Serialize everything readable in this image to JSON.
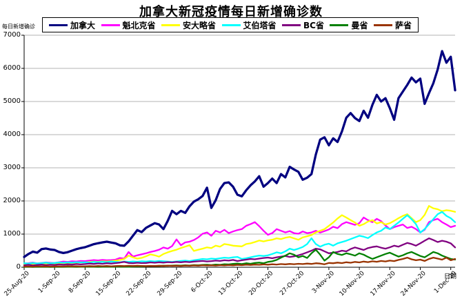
{
  "chart_data": {
    "type": "line",
    "title": "加拿大新冠疫情每日新增确诊数",
    "xlabel": "日期",
    "ylabel": "每日新增确诊",
    "ylim": [
      0,
      7000
    ],
    "y_ticks": [
      0,
      1000,
      2000,
      3000,
      4000,
      5000,
      6000,
      7000
    ],
    "x_tick_labels": [
      "25-Aug-20",
      "1-Sep-20",
      "8-Sep-20",
      "15-Sep-20",
      "22-Sep-20",
      "29-Sep-20",
      "6-Oct-20",
      "13-Oct-20",
      "20-Oct-20",
      "27-Oct-20",
      "3-Nov-20",
      "10-Nov-20",
      "17-Nov-20",
      "24-Nov-20",
      "1-Dec-20"
    ],
    "x_tick_interval_days": 7,
    "x_start_date": "25-Aug-20",
    "x_end_date": "2-Dec-20",
    "grid": true,
    "legend_position": "top",
    "gridline_color": "#b3b3b3",
    "series": [
      {
        "name": "加拿大",
        "color": "#000080",
        "values": [
          310,
          400,
          470,
          440,
          545,
          565,
          535,
          520,
          460,
          430,
          455,
          500,
          545,
          580,
          605,
          650,
          695,
          725,
          750,
          770,
          745,
          720,
          660,
          650,
          780,
          950,
          1120,
          1060,
          1190,
          1260,
          1330,
          1290,
          1150,
          1400,
          1700,
          1600,
          1700,
          1640,
          1840,
          1980,
          2050,
          2150,
          2400,
          1790,
          2020,
          2360,
          2540,
          2560,
          2430,
          2190,
          2140,
          2320,
          2470,
          2590,
          2745,
          2430,
          2540,
          2675,
          2540,
          2810,
          2710,
          3030,
          2950,
          2880,
          2640,
          2700,
          2810,
          3400,
          3850,
          3920,
          3680,
          3890,
          3780,
          4100,
          4510,
          4650,
          4500,
          4410,
          4720,
          4510,
          4900,
          5200,
          5000,
          5100,
          4800,
          4450,
          5100,
          5300,
          5500,
          5720,
          5580,
          5690,
          4930,
          5250,
          5550,
          5965,
          6520,
          6170,
          6350,
          5340
        ]
      },
      {
        "name": "魁北克省",
        "color": "#FF00FF",
        "values": [
          110,
          120,
          140,
          115,
          130,
          145,
          135,
          130,
          150,
          170,
          160,
          180,
          175,
          190,
          185,
          200,
          215,
          205,
          220,
          210,
          215,
          230,
          280,
          260,
          460,
          320,
          360,
          390,
          420,
          460,
          490,
          530,
          595,
          560,
          640,
          840,
          665,
          750,
          770,
          820,
          900,
          1010,
          1050,
          950,
          1100,
          1050,
          1130,
          1030,
          1080,
          1120,
          1150,
          1250,
          1300,
          1360,
          1240,
          1100,
          980,
          1030,
          1150,
          1100,
          1050,
          1090,
          1030,
          1010,
          1080,
          1030,
          1050,
          1100,
          1046,
          1090,
          1140,
          1220,
          1180,
          1300,
          1360,
          1320,
          1280,
          1330,
          1500,
          1420,
          1360,
          1460,
          1390,
          1260,
          1150,
          1210,
          1250,
          1290,
          1185,
          1220,
          1150,
          1050,
          1130,
          1360,
          1420,
          1460,
          1360,
          1290,
          1210,
          1250
        ]
      },
      {
        "name": "安大略省",
        "color": "#FFFF00",
        "values": [
          90,
          105,
          95,
          110,
          100,
          115,
          105,
          110,
          120,
          115,
          130,
          125,
          140,
          150,
          145,
          160,
          170,
          165,
          180,
          175,
          185,
          200,
          220,
          250,
          350,
          300,
          260,
          283,
          330,
          387,
          360,
          318,
          400,
          450,
          491,
          530,
          580,
          620,
          665,
          491,
          530,
          560,
          600,
          580,
          650,
          620,
          700,
          680,
          650,
          640,
          630,
          700,
          720,
          760,
          807,
          780,
          810,
          830,
          873,
          850,
          890,
          914,
          870,
          830,
          900,
          935,
          970,
          1050,
          1100,
          1150,
          1250,
          1350,
          1470,
          1570,
          1500,
          1420,
          1350,
          1250,
          1300,
          1380,
          1420,
          1320,
          1360,
          1290,
          1330,
          1400,
          1480,
          1550,
          1600,
          1480,
          1360,
          1420,
          1580,
          1850,
          1780,
          1750,
          1690,
          1720,
          1705,
          1670
        ]
      },
      {
        "name": "艾伯塔省",
        "color": "#00FFFF",
        "values": [
          120,
          110,
          130,
          115,
          125,
          140,
          120,
          130,
          145,
          135,
          150,
          140,
          155,
          145,
          150,
          140,
          160,
          150,
          165,
          155,
          170,
          160,
          150,
          170,
          160,
          175,
          165,
          180,
          170,
          185,
          175,
          190,
          180,
          170,
          160,
          175,
          190,
          200,
          185,
          210,
          230,
          250,
          240,
          260,
          250,
          270,
          290,
          280,
          300,
          310,
          250,
          270,
          300,
          330,
          353,
          340,
          360,
          400,
          450,
          420,
          480,
          560,
          520,
          560,
          610,
          700,
          873,
          700,
          620,
          680,
          710,
          650,
          720,
          760,
          800,
          850,
          900,
          950,
          920,
          880,
          970,
          1050,
          1100,
          1200,
          1150,
          1250,
          1350,
          1460,
          1570,
          1450,
          1300,
          1046,
          1150,
          1300,
          1450,
          1600,
          1670,
          1550,
          1480,
          1360
        ]
      },
      {
        "name": "BC省",
        "color": "#800080",
        "values": [
          60,
          75,
          55,
          70,
          80,
          65,
          75,
          70,
          85,
          75,
          90,
          80,
          95,
          85,
          95,
          110,
          100,
          115,
          105,
          120,
          110,
          125,
          140,
          160,
          130,
          120,
          135,
          125,
          130,
          145,
          135,
          150,
          140,
          155,
          145,
          160,
          150,
          165,
          155,
          170,
          180,
          190,
          175,
          185,
          200,
          190,
          210,
          200,
          220,
          187,
          210,
          230,
          250,
          240,
          260,
          280,
          291,
          270,
          300,
          320,
          340,
          310,
          330,
          360,
          400,
          450,
          500,
          561,
          540,
          480,
          420,
          440,
          460,
          500,
          480,
          550,
          597,
          560,
          520,
          580,
          610,
          630,
          590,
          560,
          600,
          650,
          620,
          680,
          734,
          700,
          650,
          720,
          800,
          873,
          820,
          760,
          800,
          770,
          720,
          597
        ]
      },
      {
        "name": "曼省",
        "color": "#008000",
        "values": [
          10,
          12,
          8,
          14,
          10,
          12,
          9,
          11,
          13,
          10,
          12,
          14,
          11,
          13,
          15,
          12,
          14,
          11,
          13,
          15,
          17,
          14,
          16,
          18,
          15,
          20,
          22,
          25,
          30,
          35,
          40,
          38,
          45,
          42,
          50,
          55,
          48,
          60,
          52,
          65,
          58,
          70,
          75,
          65,
          80,
          72,
          90,
          85,
          100,
          110,
          95,
          120,
          105,
          130,
          140,
          120,
          160,
          180,
          220,
          290,
          350,
          420,
          380,
          300,
          340,
          280,
          420,
          530,
          380,
          200,
          300,
          460,
          400,
          370,
          420,
          390,
          350,
          420,
          380,
          310,
          250,
          300,
          350,
          400,
          440,
          380,
          320,
          360,
          420,
          460,
          400,
          340,
          300,
          380,
          460,
          420,
          350,
          300,
          250,
          231
        ]
      },
      {
        "name": "萨省",
        "color": "#993300",
        "values": [
          20,
          25,
          18,
          30,
          22,
          28,
          20,
          25,
          30,
          22,
          35,
          28,
          32,
          25,
          30,
          35,
          28,
          40,
          32,
          38,
          30,
          35,
          42,
          36,
          44,
          38,
          45,
          40,
          35,
          42,
          38,
          45,
          40,
          48,
          42,
          45,
          40,
          50,
          45,
          55,
          48,
          60,
          52,
          58,
          50,
          62,
          55,
          65,
          58,
          70,
          62,
          75,
          68,
          80,
          72,
          85,
          78,
          90,
          82,
          95,
          88,
          100,
          92,
          105,
          95,
          110,
          100,
          120,
          110,
          90,
          130,
          120,
          140,
          125,
          150,
          135,
          160,
          145,
          170,
          155,
          180,
          165,
          190,
          175,
          200,
          185,
          220,
          250,
          290,
          240,
          210,
          230,
          190,
          250,
          290,
          260,
          230,
          290,
          210,
          250
        ]
      }
    ]
  }
}
